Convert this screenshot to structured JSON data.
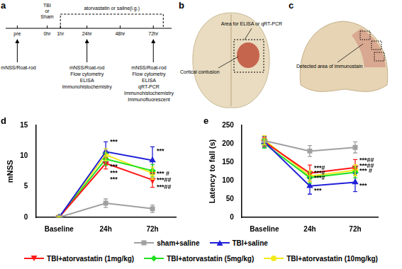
{
  "panels": [
    {
      "label": "a",
      "times": [
        "pre",
        "0hr",
        "1hr",
        "24hr",
        "48hr",
        "72hr"
      ],
      "event": {
        "time": "0hr",
        "lines": [
          "TBI",
          "or",
          "Sham"
        ]
      },
      "treatment": {
        "from": "1hr",
        "to": "72hr",
        "text": "atorvastatin or saline(i.g.)"
      },
      "tests": [
        {
          "time": "pre",
          "items": [
            "mNSS/Roat-rod"
          ]
        },
        {
          "time": "24hr",
          "items": [
            "mNSS/Roat-rod",
            "Flow cytometry",
            "ELISA",
            "Immunohistochemistry"
          ]
        },
        {
          "time": "72hr",
          "items": [
            "mNSS/Roat-rod",
            "Flow cytometry",
            "ELISA",
            "qRT-PCR",
            "Immunohistochemistry",
            "Immunofluorescent"
          ]
        }
      ]
    },
    {
      "label": "b",
      "texts": [
        "Area for ELISA or qRT-PCR",
        "Cortical contusion"
      ]
    },
    {
      "label": "c",
      "texts": [
        "Detected area of immunostain"
      ]
    }
  ],
  "chart_data": [
    {
      "panel": "d",
      "type": "line",
      "y_label": "mNSS",
      "categories": [
        "Baseline",
        "24h",
        "72h"
      ],
      "ylim": [
        0,
        15
      ],
      "yticks": [
        0,
        5,
        10,
        15
      ],
      "grid": false,
      "legend": "bottom",
      "series": [
        {
          "name": "sham+saline",
          "color": "#a0a0a0",
          "marker": "square",
          "values": [
            0,
            2.3,
            1.4
          ],
          "errors": [
            0.1,
            0.7,
            0.6
          ]
        },
        {
          "name": "TBI+saline",
          "color": "#2020d8",
          "marker": "triangle",
          "values": [
            0,
            10.7,
            9.3
          ],
          "errors": [
            0.1,
            1.6,
            2.2
          ]
        },
        {
          "name": "TBI+atorvastatin (1mg/kg)",
          "color": "#ff1a1a",
          "marker": "triangle-down",
          "values": [
            0,
            8.8,
            6.1
          ],
          "errors": [
            0.1,
            0.9,
            1.2
          ]
        },
        {
          "name": "TBI+atorvastatin (5mg/kg)",
          "color": "#22e022",
          "marker": "diamond",
          "values": [
            0,
            9.5,
            7.6
          ],
          "errors": [
            0.1,
            1.0,
            1.0
          ]
        },
        {
          "name": "TBI+atorvastatin (10mg/kg)",
          "color": "#f2ea1a",
          "marker": "circle",
          "values": [
            0,
            10.2,
            7.2
          ],
          "errors": [
            0.1,
            1.0,
            1.0
          ]
        }
      ],
      "annotations": [
        {
          "x": "24h",
          "y": 12.3,
          "text": "***"
        },
        {
          "x": "24h",
          "y": 8.2,
          "text": "***"
        },
        {
          "x": "24h",
          "y": 7.2,
          "text": "***"
        },
        {
          "x": "24h",
          "y": 6.2,
          "text": "***"
        },
        {
          "x": "72h",
          "y": 10.8,
          "text": "***"
        },
        {
          "x": "72h",
          "y": 7.1,
          "text": "*** #"
        },
        {
          "x": "72h",
          "y": 6.0,
          "text": "***##"
        },
        {
          "x": "72h",
          "y": 4.9,
          "text": "***##"
        }
      ]
    },
    {
      "panel": "e",
      "type": "line",
      "y_label": "Latency to fall (s)",
      "categories": [
        "Baseline",
        "24h",
        "72h"
      ],
      "ylim": [
        0,
        250
      ],
      "yticks": [
        0,
        50,
        100,
        150,
        200,
        250
      ],
      "grid": false,
      "series": [
        {
          "name": "sham+saline",
          "color": "#a0a0a0",
          "marker": "square",
          "values": [
            208,
            180,
            190
          ],
          "errors": [
            12,
            15,
            15
          ]
        },
        {
          "name": "TBI+saline",
          "color": "#2020d8",
          "marker": "triangle",
          "values": [
            205,
            85,
            95
          ],
          "errors": [
            15,
            22,
            25
          ]
        },
        {
          "name": "TBI+atorvastatin (1mg/kg)",
          "color": "#ff1a1a",
          "marker": "triangle-down",
          "values": [
            205,
            120,
            135
          ],
          "errors": [
            12,
            22,
            22
          ]
        },
        {
          "name": "TBI+atorvastatin (5mg/kg)",
          "color": "#22e022",
          "marker": "diamond",
          "values": [
            200,
            108,
            122
          ],
          "errors": [
            12,
            15,
            15
          ]
        },
        {
          "name": "TBI+atorvastatin (10mg/kg)",
          "color": "#f2ea1a",
          "marker": "circle",
          "values": [
            210,
            112,
            128
          ],
          "errors": [
            12,
            15,
            15
          ]
        }
      ],
      "annotations": [
        {
          "x": "24h",
          "y": 134,
          "text": "***#"
        },
        {
          "x": "24h",
          "y": 120,
          "text": "***#"
        },
        {
          "x": "24h",
          "y": 106,
          "text": "***#"
        },
        {
          "x": "24h",
          "y": 72,
          "text": "***"
        },
        {
          "x": "72h",
          "y": 154,
          "text": "***##"
        },
        {
          "x": "72h",
          "y": 140,
          "text": "***##"
        },
        {
          "x": "72h",
          "y": 126,
          "text": "*** #"
        },
        {
          "x": "72h",
          "y": 85,
          "text": "***"
        }
      ]
    }
  ]
}
